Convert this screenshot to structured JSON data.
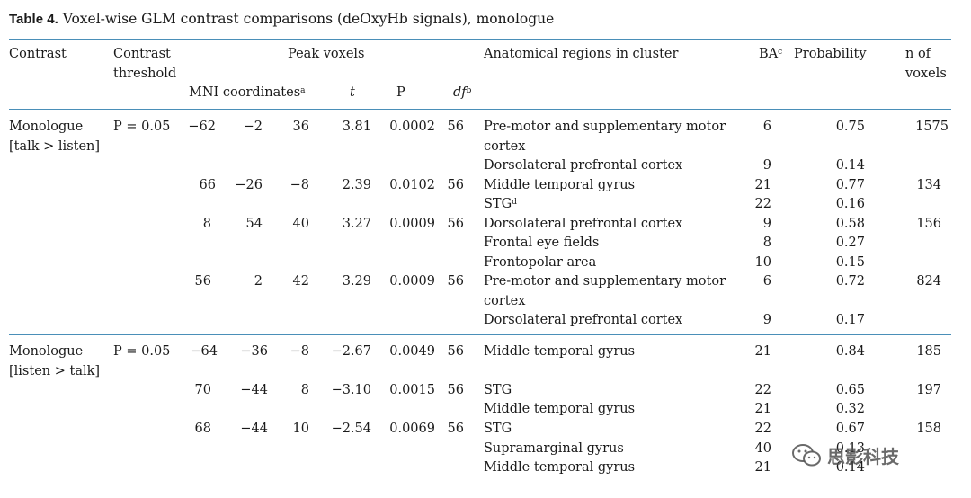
{
  "caption": {
    "label": "Table 4.",
    "text": "Voxel-wise GLM contrast comparisons (deOxyHb signals), monologue"
  },
  "headers": {
    "contrast": "Contrast",
    "threshold_1": "Contrast",
    "threshold_2": "threshold",
    "peak_voxels": "Peak voxels",
    "mni": "MNI coordinates",
    "mni_sup": "a",
    "t": "t",
    "p": "P",
    "df": "df",
    "df_sup": "b",
    "regions": "Anatomical regions in cluster",
    "ba": "BA",
    "ba_sup": "c",
    "probability": "Probability",
    "n_1": "n of",
    "n_2": "voxels"
  },
  "groups": [
    {
      "contrast_1": "Monologue",
      "contrast_2": "[talk > listen]",
      "threshold": "P = 0.05"
    },
    {
      "contrast_1": "Monologue",
      "contrast_2": "[listen > talk]",
      "threshold": "P = 0.05"
    }
  ],
  "peaks": [
    {
      "x": "−62",
      "y": "−2",
      "z": "36",
      "t": "3.81",
      "p": "0.0002",
      "df": "56",
      "n": "1575"
    },
    {
      "x": "66",
      "y": "−26",
      "z": "−8",
      "t": "2.39",
      "p": "0.0102",
      "df": "56",
      "n": "134"
    },
    {
      "x": "8",
      "y": "54",
      "z": "40",
      "t": "3.27",
      "p": "0.0009",
      "df": "56",
      "n": "156"
    },
    {
      "x": "56",
      "y": "2",
      "z": "42",
      "t": "3.29",
      "p": "0.0009",
      "df": "56",
      "n": "824"
    },
    {
      "x": "−64",
      "y": "−36",
      "z": "−8",
      "t": "−2.67",
      "p": "0.0049",
      "df": "56",
      "n": "185"
    },
    {
      "x": "70",
      "y": "−44",
      "z": "8",
      "t": "−3.10",
      "p": "0.0015",
      "df": "56",
      "n": "197"
    },
    {
      "x": "68",
      "y": "−44",
      "z": "10",
      "t": "−2.54",
      "p": "0.0069",
      "df": "56",
      "n": "158"
    }
  ],
  "regions": [
    {
      "line_1": "Pre-motor and supplementary motor",
      "line_2": "cortex",
      "ba": "6",
      "prob": "0.75"
    },
    {
      "line_1": "Dorsolateral prefrontal cortex",
      "ba": "9",
      "prob": "0.14"
    },
    {
      "line_1": "Middle temporal gyrus",
      "ba": "21",
      "prob": "0.77"
    },
    {
      "line_1": "STG",
      "sup": "d",
      "ba": "22",
      "prob": "0.16"
    },
    {
      "line_1": "Dorsolateral prefrontal cortex",
      "ba": "9",
      "prob": "0.58"
    },
    {
      "line_1": "Frontal eye fields",
      "ba": "8",
      "prob": "0.27"
    },
    {
      "line_1": "Frontopolar area",
      "ba": "10",
      "prob": "0.15"
    },
    {
      "line_1": "Pre-motor and supplementary motor",
      "line_2": "cortex",
      "ba": "6",
      "prob": "0.72"
    },
    {
      "line_1": "Dorsolateral prefrontal cortex",
      "ba": "9",
      "prob": "0.17"
    },
    {
      "line_1": "Middle temporal gyrus",
      "ba": "21",
      "prob": "0.84"
    },
    {
      "line_1": "STG",
      "ba": "22",
      "prob": "0.65"
    },
    {
      "line_1": "Middle temporal gyrus",
      "ba": "21",
      "prob": "0.32"
    },
    {
      "line_1": "STG",
      "ba": "22",
      "prob": "0.67"
    },
    {
      "line_1": "Supramarginal gyrus",
      "ba": "40",
      "prob": "0.13"
    },
    {
      "line_1": "Middle temporal gyrus",
      "ba": "21",
      "prob": "0.14"
    }
  ],
  "watermark": {
    "text": "思影科技",
    "icon": "wechat-icon"
  }
}
